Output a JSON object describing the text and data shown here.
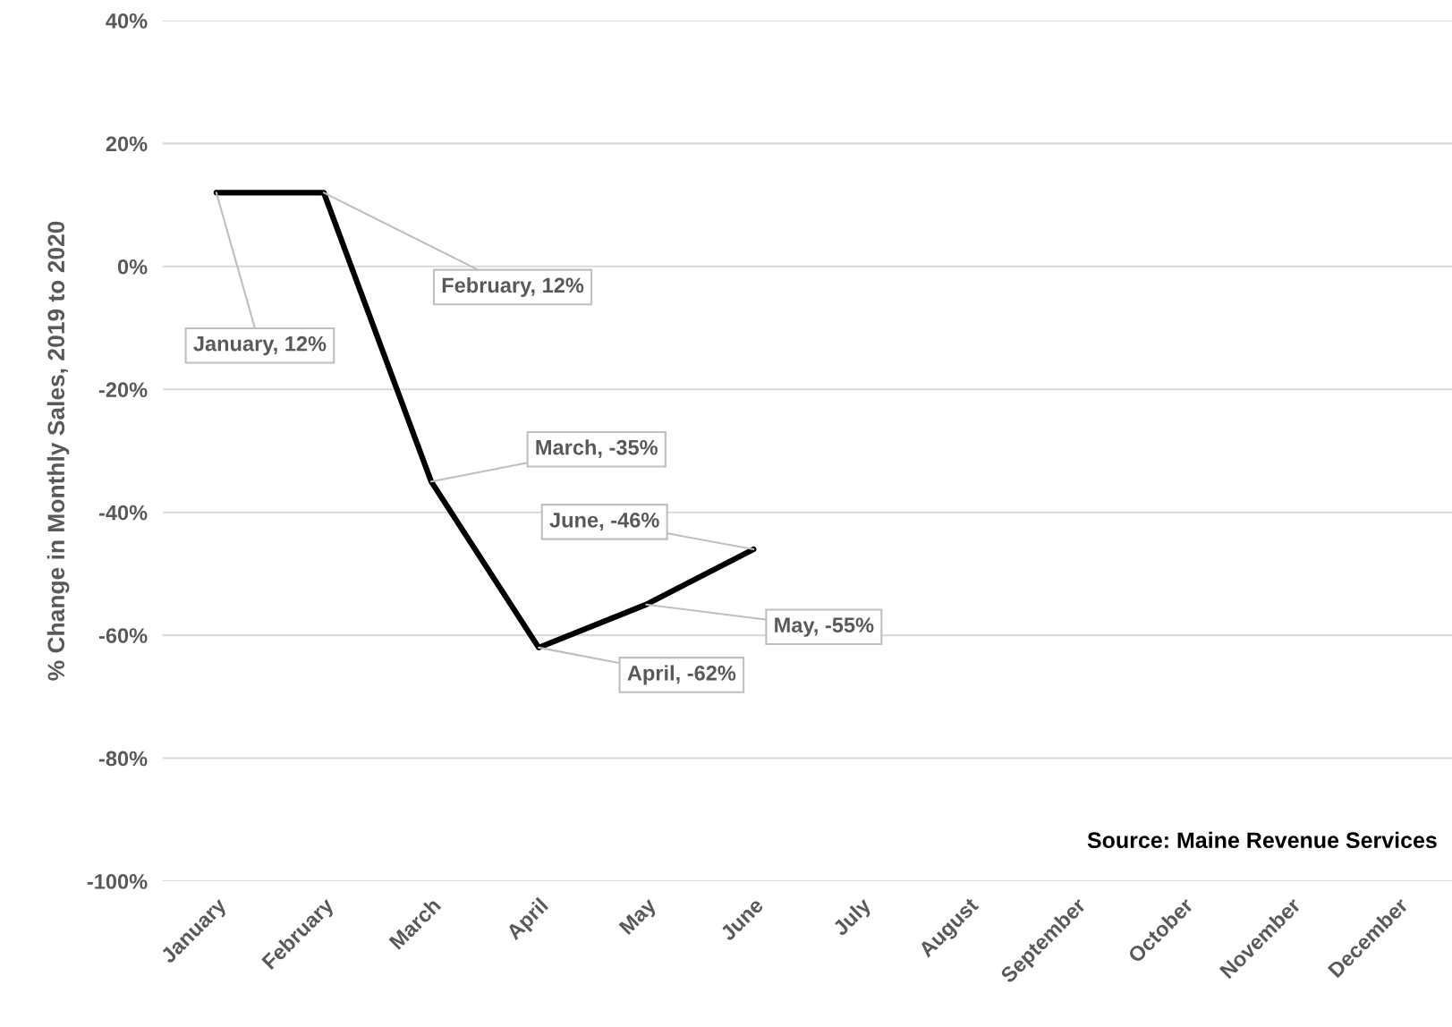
{
  "chart_data": {
    "type": "line",
    "ylabel": "% Change in Monthly Sales, 2019 to 2020",
    "categories": [
      "January",
      "February",
      "March",
      "April",
      "May",
      "June",
      "July",
      "August",
      "September",
      "October",
      "November",
      "December"
    ],
    "series": [
      {
        "color": "#000000",
        "values": [
          12,
          12,
          -35,
          -62,
          -55,
          -46,
          null,
          null,
          null,
          null,
          null,
          null
        ],
        "value_labels": [
          "January, 12%",
          "February, 12%",
          "March, -35%",
          "April, -62%",
          "May, -55%",
          "June, -46%",
          null,
          null,
          null,
          null,
          null,
          null
        ]
      }
    ],
    "ylim": [
      -100,
      40
    ],
    "yticks": [
      {
        "value": 40,
        "label": "40%"
      },
      {
        "value": 20,
        "label": "20%"
      },
      {
        "value": 0,
        "label": "0%"
      },
      {
        "value": -20,
        "label": "-20%"
      },
      {
        "value": -40,
        "label": "-40%"
      },
      {
        "value": -60,
        "label": "-60%"
      },
      {
        "value": -80,
        "label": "-80%"
      },
      {
        "value": -100,
        "label": "-100%"
      }
    ],
    "grid": "y",
    "legend": false,
    "marker": "none",
    "line_style": "solid",
    "annotations": [
      "Source: Maine Revenue Services"
    ]
  }
}
